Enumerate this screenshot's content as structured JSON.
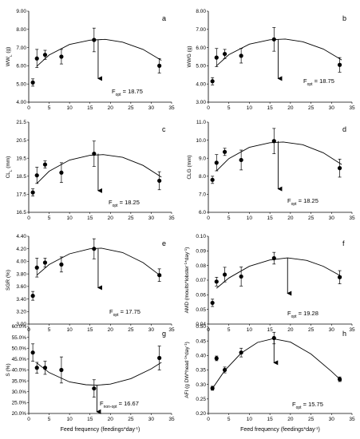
{
  "chart_data": [
    {
      "id": "a",
      "letter": "a",
      "type": "scatter",
      "ylabel": "WW",
      "ylabel_sub": "L",
      "ylabel_tail": " (g)",
      "ylim": [
        4.0,
        9.0
      ],
      "yticks": [
        "4.00",
        "5.00",
        "6.00",
        "7.00",
        "8.00",
        "9.00"
      ],
      "xlim": [
        0,
        35
      ],
      "xticks": [
        "0",
        "5",
        "10",
        "15",
        "20",
        "25",
        "30",
        "35"
      ],
      "points": [
        {
          "x": 1,
          "y": 5.08,
          "err": 0.2
        },
        {
          "x": 2,
          "y": 6.4,
          "err": 0.5
        },
        {
          "x": 4,
          "y": 6.6,
          "err": 0.25
        },
        {
          "x": 8,
          "y": 6.5,
          "err": 0.4
        },
        {
          "x": 16,
          "y": 7.42,
          "err": 0.65
        },
        {
          "x": 32,
          "y": 6.0,
          "err": 0.4
        }
      ],
      "fit": [
        {
          "x": 2,
          "y": 5.98
        },
        {
          "x": 5,
          "y": 6.59
        },
        {
          "x": 10,
          "y": 7.17
        },
        {
          "x": 15,
          "y": 7.41
        },
        {
          "x": 18.75,
          "y": 7.45
        },
        {
          "x": 23,
          "y": 7.3
        },
        {
          "x": 28,
          "y": 6.9
        },
        {
          "x": 32.5,
          "y": 6.3
        }
      ],
      "arrow": {
        "x": 17,
        "y_from": 7.42,
        "y_to": 5.3
      },
      "fopt_prefix": "F",
      "fopt_sub": "opt",
      "fopt_value": " = 18.75"
    },
    {
      "id": "b",
      "letter": "b",
      "type": "scatter",
      "ylabel": "WWG (g)",
      "ylabel_sub": "",
      "ylabel_tail": "",
      "ylim": [
        3.0,
        8.0
      ],
      "yticks": [
        "3.00",
        "4.00",
        "5.00",
        "6.00",
        "7.00",
        "8.00"
      ],
      "xlim": [
        0,
        35
      ],
      "xticks": [
        "0",
        "5",
        "10",
        "15",
        "20",
        "25",
        "30",
        "35"
      ],
      "points": [
        {
          "x": 1,
          "y": 4.15,
          "err": 0.2
        },
        {
          "x": 2,
          "y": 5.45,
          "err": 0.5
        },
        {
          "x": 4,
          "y": 5.65,
          "err": 0.25
        },
        {
          "x": 8,
          "y": 5.55,
          "err": 0.4
        },
        {
          "x": 16,
          "y": 6.45,
          "err": 0.65
        },
        {
          "x": 32,
          "y": 5.05,
          "err": 0.4
        }
      ],
      "fit": [
        {
          "x": 2,
          "y": 5.0
        },
        {
          "x": 5,
          "y": 5.61
        },
        {
          "x": 10,
          "y": 6.19
        },
        {
          "x": 15,
          "y": 6.43
        },
        {
          "x": 18.75,
          "y": 6.47
        },
        {
          "x": 23,
          "y": 6.32
        },
        {
          "x": 28,
          "y": 5.92
        },
        {
          "x": 32.5,
          "y": 5.32
        }
      ],
      "arrow": {
        "x": 17,
        "y_from": 6.45,
        "y_to": 4.3
      },
      "fopt_prefix": "F",
      "fopt_sub": "opt",
      "fopt_value": " = 18.75"
    },
    {
      "id": "c",
      "letter": "c",
      "type": "scatter",
      "ylabel": "CL",
      "ylabel_sub": "L",
      "ylabel_tail": " (mm)",
      "ylim": [
        16.5,
        21.5
      ],
      "yticks": [
        "16.5",
        "17.5",
        "18.5",
        "19.5",
        "20.5",
        "21.5"
      ],
      "xlim": [
        0,
        35
      ],
      "xticks": [
        "0",
        "5",
        "10",
        "15",
        "20",
        "25",
        "30",
        "35"
      ],
      "points": [
        {
          "x": 1,
          "y": 17.6,
          "err": 0.2
        },
        {
          "x": 2,
          "y": 18.55,
          "err": 0.45
        },
        {
          "x": 4,
          "y": 19.15,
          "err": 0.2
        },
        {
          "x": 8,
          "y": 18.7,
          "err": 0.55
        },
        {
          "x": 16,
          "y": 19.75,
          "err": 0.7
        },
        {
          "x": 32,
          "y": 18.25,
          "err": 0.5
        }
      ],
      "fit": [
        {
          "x": 2,
          "y": 18.1
        },
        {
          "x": 5,
          "y": 18.78
        },
        {
          "x": 10,
          "y": 19.4
        },
        {
          "x": 15,
          "y": 19.66
        },
        {
          "x": 18.25,
          "y": 19.7
        },
        {
          "x": 23,
          "y": 19.55
        },
        {
          "x": 28,
          "y": 19.1
        },
        {
          "x": 32.5,
          "y": 18.45
        }
      ],
      "arrow": {
        "x": 17,
        "y_from": 19.75,
        "y_to": 17.7
      },
      "fopt_prefix": "F",
      "fopt_sub": "opt",
      "fopt_value": " = 18.25"
    },
    {
      "id": "d",
      "letter": "d",
      "type": "scatter",
      "ylabel": "CLG (mm)",
      "ylabel_sub": "",
      "ylabel_tail": "",
      "ylim": [
        6.0,
        11.0
      ],
      "yticks": [
        "6.0",
        "7.0",
        "8.0",
        "9.0",
        "10.0",
        "11.0"
      ],
      "xlim": [
        0,
        35
      ],
      "xticks": [
        "0",
        "5",
        "10",
        "15",
        "20",
        "25",
        "30",
        "35"
      ],
      "points": [
        {
          "x": 1,
          "y": 7.8,
          "err": 0.2
        },
        {
          "x": 2,
          "y": 8.75,
          "err": 0.45
        },
        {
          "x": 4,
          "y": 9.35,
          "err": 0.2
        },
        {
          "x": 8,
          "y": 8.9,
          "err": 0.55
        },
        {
          "x": 16,
          "y": 9.95,
          "err": 0.7
        },
        {
          "x": 32,
          "y": 8.45,
          "err": 0.5
        }
      ],
      "fit": [
        {
          "x": 2,
          "y": 8.3
        },
        {
          "x": 5,
          "y": 8.98
        },
        {
          "x": 10,
          "y": 9.6
        },
        {
          "x": 15,
          "y": 9.86
        },
        {
          "x": 18.25,
          "y": 9.9
        },
        {
          "x": 23,
          "y": 9.75
        },
        {
          "x": 28,
          "y": 9.3
        },
        {
          "x": 32.5,
          "y": 8.65
        }
      ],
      "arrow": {
        "x": 17,
        "y_from": 9.95,
        "y_to": 7.3
      },
      "fopt_prefix": "F",
      "fopt_sub": "opt",
      "fopt_value": " = 18.25"
    },
    {
      "id": "e",
      "letter": "e",
      "type": "scatter",
      "ylabel": "SGR (%)",
      "ylabel_sub": "",
      "ylabel_tail": "",
      "ylim": [
        3.0,
        4.4
      ],
      "yticks": [
        "3.00",
        "3.20",
        "3.40",
        "3.60",
        "3.80",
        "4.00",
        "4.20",
        "4.40"
      ],
      "xlim": [
        0,
        35
      ],
      "xticks": [
        "0",
        "5",
        "10",
        "15",
        "20",
        "25",
        "30",
        "35"
      ],
      "points": [
        {
          "x": 1,
          "y": 3.45,
          "err": 0.07
        },
        {
          "x": 2,
          "y": 3.9,
          "err": 0.15
        },
        {
          "x": 4,
          "y": 3.98,
          "err": 0.07
        },
        {
          "x": 8,
          "y": 3.95,
          "err": 0.12
        },
        {
          "x": 16,
          "y": 4.2,
          "err": 0.16
        },
        {
          "x": 32,
          "y": 3.78,
          "err": 0.1
        }
      ],
      "fit": [
        {
          "x": 2,
          "y": 3.78
        },
        {
          "x": 5,
          "y": 3.95
        },
        {
          "x": 10,
          "y": 4.12
        },
        {
          "x": 15,
          "y": 4.2
        },
        {
          "x": 17.75,
          "y": 4.21
        },
        {
          "x": 23,
          "y": 4.14
        },
        {
          "x": 28,
          "y": 3.98
        },
        {
          "x": 32.5,
          "y": 3.76
        }
      ],
      "arrow": {
        "x": 17,
        "y_from": 4.2,
        "y_to": 3.58
      },
      "fopt_prefix": "F",
      "fopt_sub": "opt",
      "fopt_value": " = 17.75"
    },
    {
      "id": "f",
      "letter": "f",
      "type": "scatter",
      "ylabel": "AMD (moults*lobster",
      "ylabel_sub": "",
      "ylabel_tail": "",
      "ylabel_parts": [
        {
          "t": "AMD (moults*lobster",
          "sup": false
        },
        {
          "t": "-1",
          "sup": true
        },
        {
          "t": "*day",
          "sup": false
        },
        {
          "t": "-1",
          "sup": true
        },
        {
          "t": ")",
          "sup": false
        }
      ],
      "ylim": [
        0.04,
        0.1
      ],
      "yticks": [
        "0.04",
        "0.05",
        "0.06",
        "0.07",
        "0.08",
        "0.09",
        "0.10"
      ],
      "xlim": [
        0,
        35
      ],
      "xticks": [
        "0",
        "5",
        "10",
        "15",
        "20",
        "25",
        "30",
        "35"
      ],
      "points": [
        {
          "x": 1,
          "y": 0.0545,
          "err": 0.0025
        },
        {
          "x": 2,
          "y": 0.069,
          "err": 0.003
        },
        {
          "x": 4,
          "y": 0.0738,
          "err": 0.005
        },
        {
          "x": 8,
          "y": 0.0725,
          "err": 0.0065
        },
        {
          "x": 16,
          "y": 0.085,
          "err": 0.004
        },
        {
          "x": 32,
          "y": 0.072,
          "err": 0.0045
        }
      ],
      "fit": [
        {
          "x": 2,
          "y": 0.0645
        },
        {
          "x": 5,
          "y": 0.0715
        },
        {
          "x": 10,
          "y": 0.0795
        },
        {
          "x": 15,
          "y": 0.0838
        },
        {
          "x": 19.28,
          "y": 0.0852
        },
        {
          "x": 24,
          "y": 0.0835
        },
        {
          "x": 28,
          "y": 0.0795
        },
        {
          "x": 32.5,
          "y": 0.0725
        }
      ],
      "arrow": {
        "x": 19.3,
        "y_from": 0.085,
        "y_to": 0.061
      },
      "fopt_prefix": "F",
      "fopt_sub": "opt",
      "fopt_value": " = 19.28"
    },
    {
      "id": "g",
      "letter": "g",
      "type": "scatter",
      "ylabel": "S (%)",
      "ylabel_sub": "",
      "ylabel_tail": "",
      "ylim": [
        20.0,
        60.0
      ],
      "yticks": [
        "20.0%",
        "25.0%",
        "30.0%",
        "35.0%",
        "40.0%",
        "45.0%",
        "50.0%",
        "55.0%",
        "60.0%"
      ],
      "xlim": [
        0,
        35
      ],
      "xticks": [
        "0",
        "5",
        "10",
        "15",
        "20",
        "25",
        "30",
        "35"
      ],
      "xlabel": "Feed frequency (feedings*day",
      "xlabel_sup": "-1",
      "xlabel_tail": ")",
      "points": [
        {
          "x": 1,
          "y": 48.0,
          "err": 4.0
        },
        {
          "x": 2,
          "y": 41.0,
          "err": 2.5
        },
        {
          "x": 4,
          "y": 41.0,
          "err": 3.0
        },
        {
          "x": 8,
          "y": 40.0,
          "err": 6.0
        },
        {
          "x": 16,
          "y": 31.5,
          "err": 4.0
        },
        {
          "x": 32,
          "y": 45.5,
          "err": 5.5
        }
      ],
      "fit": [
        {
          "x": 2,
          "y": 43.2
        },
        {
          "x": 5,
          "y": 38.8
        },
        {
          "x": 10,
          "y": 34.5
        },
        {
          "x": 14,
          "y": 33.2
        },
        {
          "x": 16.67,
          "y": 33.0
        },
        {
          "x": 20,
          "y": 33.5
        },
        {
          "x": 25,
          "y": 36.0
        },
        {
          "x": 30,
          "y": 40.5
        },
        {
          "x": 32.5,
          "y": 43.5
        }
      ],
      "arrow": {
        "x": 16.7,
        "y_from": 33.0,
        "y_to": 20.8
      },
      "fopt_prefix": "F",
      "fopt_sub": "non-opt",
      "fopt_value": " = 16.67"
    },
    {
      "id": "h",
      "letter": "h",
      "type": "scatter",
      "ylabel": "AFI (g DW*head",
      "ylabel_sub": "",
      "ylabel_tail": "",
      "ylabel_parts": [
        {
          "t": "AFI (g DW*head",
          "sup": false
        },
        {
          "t": "-1",
          "sup": true
        },
        {
          "t": "*day",
          "sup": false
        },
        {
          "t": "-1",
          "sup": true
        },
        {
          "t": ")",
          "sup": false
        }
      ],
      "ylim": [
        0.2,
        0.5
      ],
      "yticks": [
        "0.20",
        "0.25",
        "0.30",
        "0.35",
        "0.40",
        "0.45",
        "0.50"
      ],
      "xlim": [
        0,
        35
      ],
      "xticks": [
        "0",
        "5",
        "10",
        "15",
        "20",
        "25",
        "30",
        "35"
      ],
      "xlabel": "Feed frequency (feedings*day",
      "xlabel_sup": "-1",
      "xlabel_tail": ")",
      "points": [
        {
          "x": 1,
          "y": 0.287,
          "err": 0.007
        },
        {
          "x": 2,
          "y": 0.39,
          "err": 0.008
        },
        {
          "x": 4,
          "y": 0.35,
          "err": 0.01
        },
        {
          "x": 8,
          "y": 0.41,
          "err": 0.015
        },
        {
          "x": 16,
          "y": 0.46,
          "err": 0.02
        },
        {
          "x": 32,
          "y": 0.318,
          "err": 0.008
        }
      ],
      "fit": [
        {
          "x": 1,
          "y": 0.286
        },
        {
          "x": 4,
          "y": 0.348
        },
        {
          "x": 8,
          "y": 0.408
        },
        {
          "x": 12,
          "y": 0.445
        },
        {
          "x": 15.75,
          "y": 0.458
        },
        {
          "x": 20,
          "y": 0.446
        },
        {
          "x": 25,
          "y": 0.405
        },
        {
          "x": 30,
          "y": 0.345
        },
        {
          "x": 32.5,
          "y": 0.312
        }
      ],
      "arrow": {
        "x": 16.0,
        "y_from": 0.46,
        "y_to": 0.375
      },
      "fopt_prefix": "F",
      "fopt_sub": "opt",
      "fopt_value": " = 15.75"
    }
  ]
}
